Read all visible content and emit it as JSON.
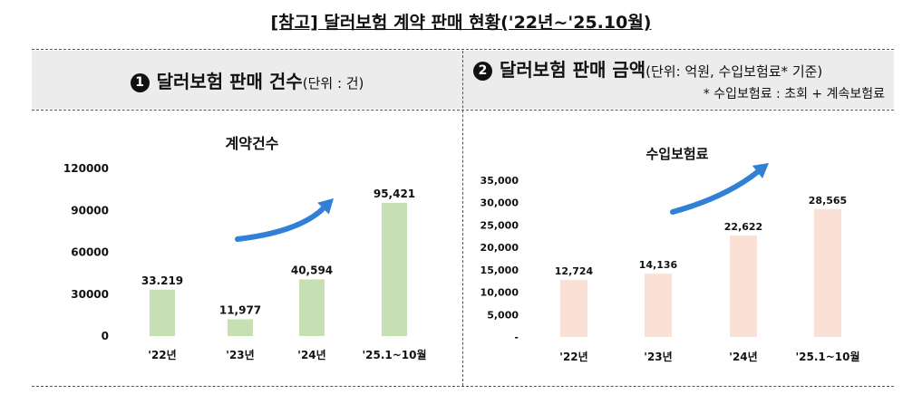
{
  "title": "[참고] 달러보험 계약 판매 현황('22년~'25.10월)",
  "panel1": {
    "marker": "1",
    "heading": "달러보험 판매 건수",
    "unit_note": "(단위 : 건)"
  },
  "panel2": {
    "marker": "2",
    "heading": "달러보험 판매 금액",
    "unit_note": "(단위: 억원, 수입보험료* 기준)",
    "footnote": "* 수입보험료 : 초회 + 계속보험료"
  },
  "colors": {
    "bar1": "#c6e0b4",
    "bar2": "#fbe1d5",
    "header_bg": "#ececec",
    "arrow": "#2f80d6"
  },
  "chart_data": [
    {
      "type": "bar",
      "title": "계약건수",
      "categories": [
        "'22년",
        "'23년",
        "'24년",
        "'25.1~10월"
      ],
      "values": [
        33219,
        11977,
        40594,
        95421
      ],
      "value_labels": [
        "33.219",
        "11,977",
        "40,594",
        "95,421"
      ],
      "ylim": [
        0,
        120000
      ],
      "yticks": [
        0,
        30000,
        60000,
        90000,
        120000
      ],
      "ytick_labels": [
        "0",
        "30000",
        "60000",
        "90000",
        "120000"
      ],
      "grid": false,
      "legend": "none",
      "annotation": "upward-arrow"
    },
    {
      "type": "bar",
      "title": "수입보험료",
      "categories": [
        "'22년",
        "'23년",
        "'24년",
        "'25.1~10월"
      ],
      "values": [
        12724,
        14136,
        22622,
        28565
      ],
      "value_labels": [
        "12,724",
        "14,136",
        "22,622",
        "28,565"
      ],
      "ylim": [
        0,
        35000
      ],
      "yticks": [
        0,
        5000,
        10000,
        15000,
        20000,
        25000,
        30000,
        35000
      ],
      "ytick_labels": [
        "-",
        "5,000",
        "10,000",
        "15,000",
        "20,000",
        "25,000",
        "30,000",
        "35,000"
      ],
      "grid": false,
      "legend": "none",
      "annotation": "upward-arrow"
    }
  ]
}
